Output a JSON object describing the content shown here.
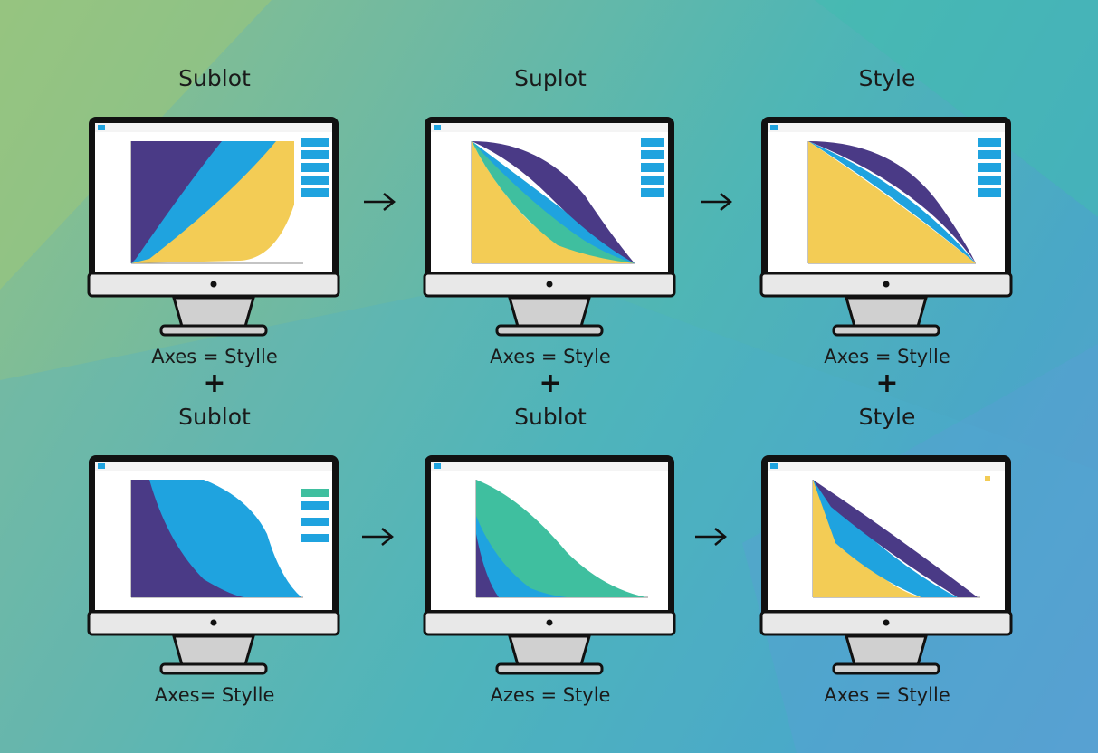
{
  "colors": {
    "purple": "#4a3a86",
    "blue": "#1fa3df",
    "teal": "#3fbf9f",
    "yellow": "#f3cc55",
    "bezel": "#111111",
    "stand": "#d0d0d0",
    "button": "#1fa3df"
  },
  "cells": [
    {
      "title": "Sublot",
      "caption": "Axes = Stylle",
      "plus": "+"
    },
    {
      "title": "Suplot",
      "caption": "Axes = Style",
      "plus": "+"
    },
    {
      "title": "Style",
      "caption": "Axes = Stylle",
      "plus": "+"
    },
    {
      "title": "Sublot",
      "caption": "Axes= Stylle"
    },
    {
      "title": "Sublot",
      "caption": "Azes = Style"
    },
    {
      "title": "Style",
      "caption": "Axes = Stylle"
    }
  ],
  "screens": [
    {
      "type": "area",
      "layers": [
        "yellow",
        "blue",
        "purple"
      ],
      "buttons": 5
    },
    {
      "type": "area",
      "layers": [
        "yellow",
        "teal",
        "blue",
        "purple"
      ],
      "buttons": 5
    },
    {
      "type": "area",
      "layers": [
        "yellow",
        "blue",
        "purple"
      ],
      "buttons": 5
    },
    {
      "type": "area",
      "layers": [
        "blue",
        "purple"
      ],
      "buttons": 4
    },
    {
      "type": "area",
      "layers": [
        "teal",
        "blue",
        "purple"
      ],
      "buttons": 0
    },
    {
      "type": "area",
      "layers": [
        "yellow",
        "blue",
        "purple"
      ],
      "buttons": 0
    }
  ],
  "arrows": [
    "→",
    "→",
    "→",
    "→"
  ]
}
